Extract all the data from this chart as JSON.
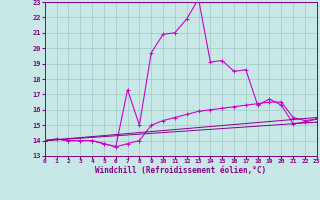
{
  "xlabel": "Windchill (Refroidissement éolien,°C)",
  "xlim": [
    0,
    23
  ],
  "ylim": [
    13,
    23
  ],
  "yticks": [
    13,
    14,
    15,
    16,
    17,
    18,
    19,
    20,
    21,
    22,
    23
  ],
  "xticks": [
    0,
    1,
    2,
    3,
    4,
    5,
    6,
    7,
    8,
    9,
    10,
    11,
    12,
    13,
    14,
    15,
    16,
    17,
    18,
    19,
    20,
    21,
    22,
    23
  ],
  "bg_color": "#c8e8e8",
  "grid_color": "#a0c8c8",
  "line_color": "#880088",
  "line_color2": "#cc00cc",
  "series": [
    {
      "x": [
        0,
        1,
        2,
        3,
        4,
        5,
        6,
        7,
        8,
        9,
        10,
        11,
        12,
        13,
        14,
        15,
        16,
        17,
        18,
        19,
        20,
        21,
        22,
        23
      ],
      "y": [
        14.0,
        14.1,
        14.0,
        14.0,
        14.0,
        13.8,
        13.6,
        17.3,
        15.0,
        19.7,
        20.9,
        21.0,
        21.9,
        23.2,
        19.1,
        19.2,
        18.5,
        18.6,
        16.3,
        16.7,
        16.3,
        15.1,
        15.2,
        15.4
      ]
    },
    {
      "x": [
        0,
        1,
        2,
        3,
        4,
        5,
        6,
        7,
        8,
        9,
        10,
        11,
        12,
        13,
        14,
        15,
        16,
        17,
        18,
        19,
        20,
        21,
        22,
        23
      ],
      "y": [
        14.0,
        14.1,
        14.0,
        14.0,
        14.0,
        13.8,
        13.6,
        13.8,
        14.0,
        15.0,
        15.3,
        15.5,
        15.7,
        15.9,
        16.0,
        16.1,
        16.2,
        16.3,
        16.4,
        16.5,
        16.5,
        15.5,
        15.3,
        15.4
      ]
    },
    {
      "x": [
        0,
        23
      ],
      "y": [
        14.0,
        15.2
      ]
    },
    {
      "x": [
        0,
        23
      ],
      "y": [
        14.0,
        15.5
      ]
    }
  ]
}
